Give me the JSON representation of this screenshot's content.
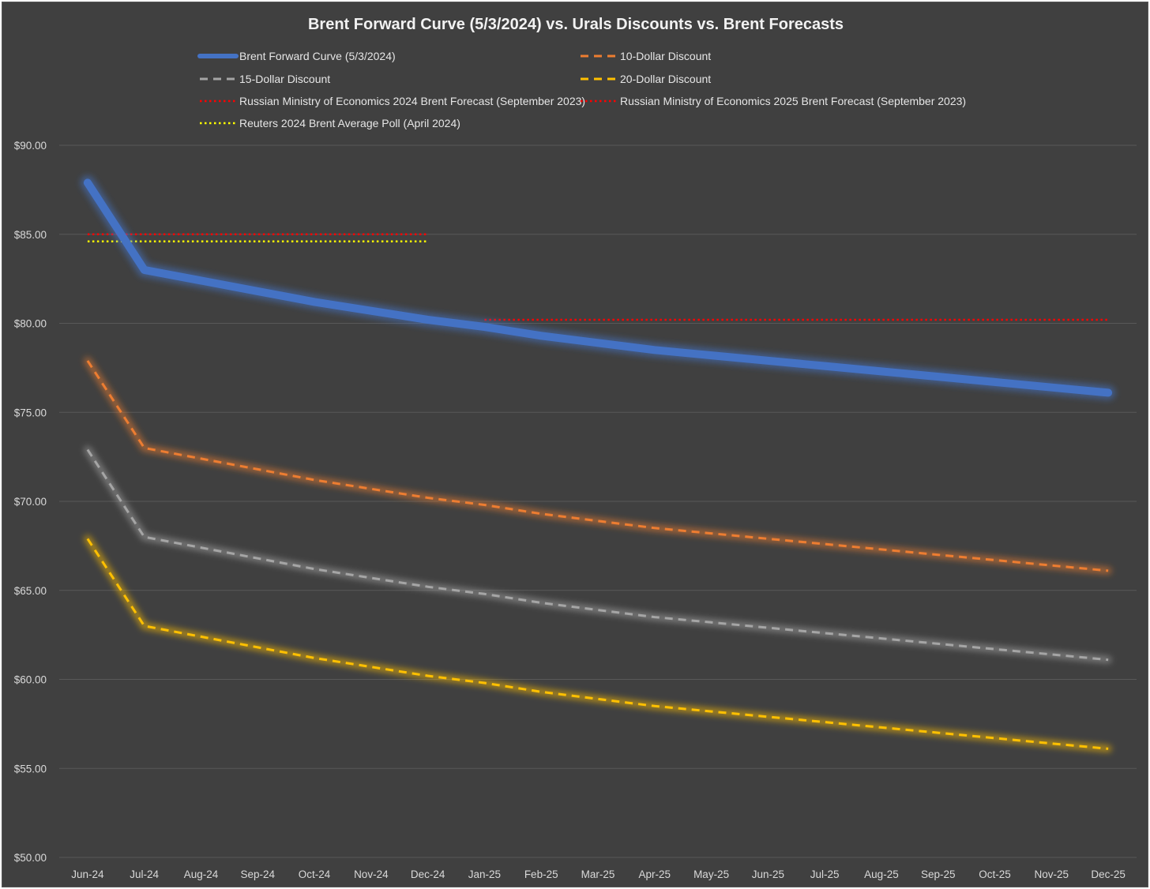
{
  "chart_data": {
    "type": "line",
    "title": "Brent Forward Curve (5/3/2024) vs. Urals Discounts vs. Brent Forecasts",
    "xlabel": "",
    "ylabel": "",
    "categories": [
      "Jun-24",
      "Jul-24",
      "Aug-24",
      "Sep-24",
      "Oct-24",
      "Nov-24",
      "Dec-24",
      "Jan-25",
      "Feb-25",
      "Mar-25",
      "Apr-25",
      "May-25",
      "Jun-25",
      "Jul-25",
      "Aug-25",
      "Sep-25",
      "Oct-25",
      "Nov-25",
      "Dec-25"
    ],
    "ylim": [
      50,
      90
    ],
    "y_ticks": [
      50,
      55,
      60,
      65,
      70,
      75,
      80,
      85,
      90
    ],
    "y_tick_labels": [
      "$50.00",
      "$55.00",
      "$60.00",
      "$65.00",
      "$70.00",
      "$75.00",
      "$80.00",
      "$85.00",
      "$90.00"
    ],
    "grid": true,
    "legend_position": "top",
    "series": [
      {
        "name": "Brent Forward Curve (5/3/2024)",
        "color": "#4472c4",
        "style": "solid-thick",
        "values": [
          87.9,
          83.0,
          82.4,
          81.8,
          81.2,
          80.7,
          80.2,
          79.8,
          79.3,
          78.9,
          78.5,
          78.2,
          77.9,
          77.6,
          77.3,
          77.0,
          76.7,
          76.4,
          76.1
        ]
      },
      {
        "name": "10-Dollar Discount",
        "color": "#ed7d31",
        "style": "dashed",
        "values": [
          77.9,
          73.0,
          72.4,
          71.8,
          71.2,
          70.7,
          70.2,
          69.8,
          69.3,
          68.9,
          68.5,
          68.2,
          67.9,
          67.6,
          67.3,
          67.0,
          66.7,
          66.4,
          66.1
        ]
      },
      {
        "name": "15-Dollar Discount",
        "color": "#a5a5a5",
        "style": "dashed",
        "values": [
          72.9,
          68.0,
          67.4,
          66.8,
          66.2,
          65.7,
          65.2,
          64.8,
          64.3,
          63.9,
          63.5,
          63.2,
          62.9,
          62.6,
          62.3,
          62.0,
          61.7,
          61.4,
          61.1
        ]
      },
      {
        "name": "20-Dollar Discount",
        "color": "#ffc000",
        "style": "dashed",
        "values": [
          67.9,
          63.0,
          62.4,
          61.8,
          61.2,
          60.7,
          60.2,
          59.8,
          59.3,
          58.9,
          58.5,
          58.2,
          57.9,
          57.6,
          57.3,
          57.0,
          56.7,
          56.4,
          56.1
        ]
      },
      {
        "name": "Russian Ministry of Economics 2024 Brent Forecast (September 2023)",
        "color": "#ff0000",
        "style": "dotted",
        "glow": "#4472c4",
        "values": [
          85.0,
          85.0,
          85.0,
          85.0,
          85.0,
          85.0,
          85.0,
          null,
          null,
          null,
          null,
          null,
          null,
          null,
          null,
          null,
          null,
          null,
          null
        ]
      },
      {
        "name": "Russian Ministry of Economics 2025 Brent Forecast (September 2023)",
        "color": "#ff0000",
        "style": "dotted",
        "glow": "#70ad47",
        "values": [
          null,
          null,
          null,
          null,
          null,
          null,
          null,
          80.2,
          80.2,
          80.2,
          80.2,
          80.2,
          80.2,
          80.2,
          80.2,
          80.2,
          80.2,
          80.2,
          80.2
        ]
      },
      {
        "name": "Reuters 2024 Brent Average Poll (April 2024)",
        "color": "#ffff00",
        "style": "dotted",
        "glow": "#4472c4",
        "values": [
          84.6,
          84.6,
          84.6,
          84.6,
          84.6,
          84.6,
          84.6,
          null,
          null,
          null,
          null,
          null,
          null,
          null,
          null,
          null,
          null,
          null,
          null
        ]
      }
    ]
  }
}
